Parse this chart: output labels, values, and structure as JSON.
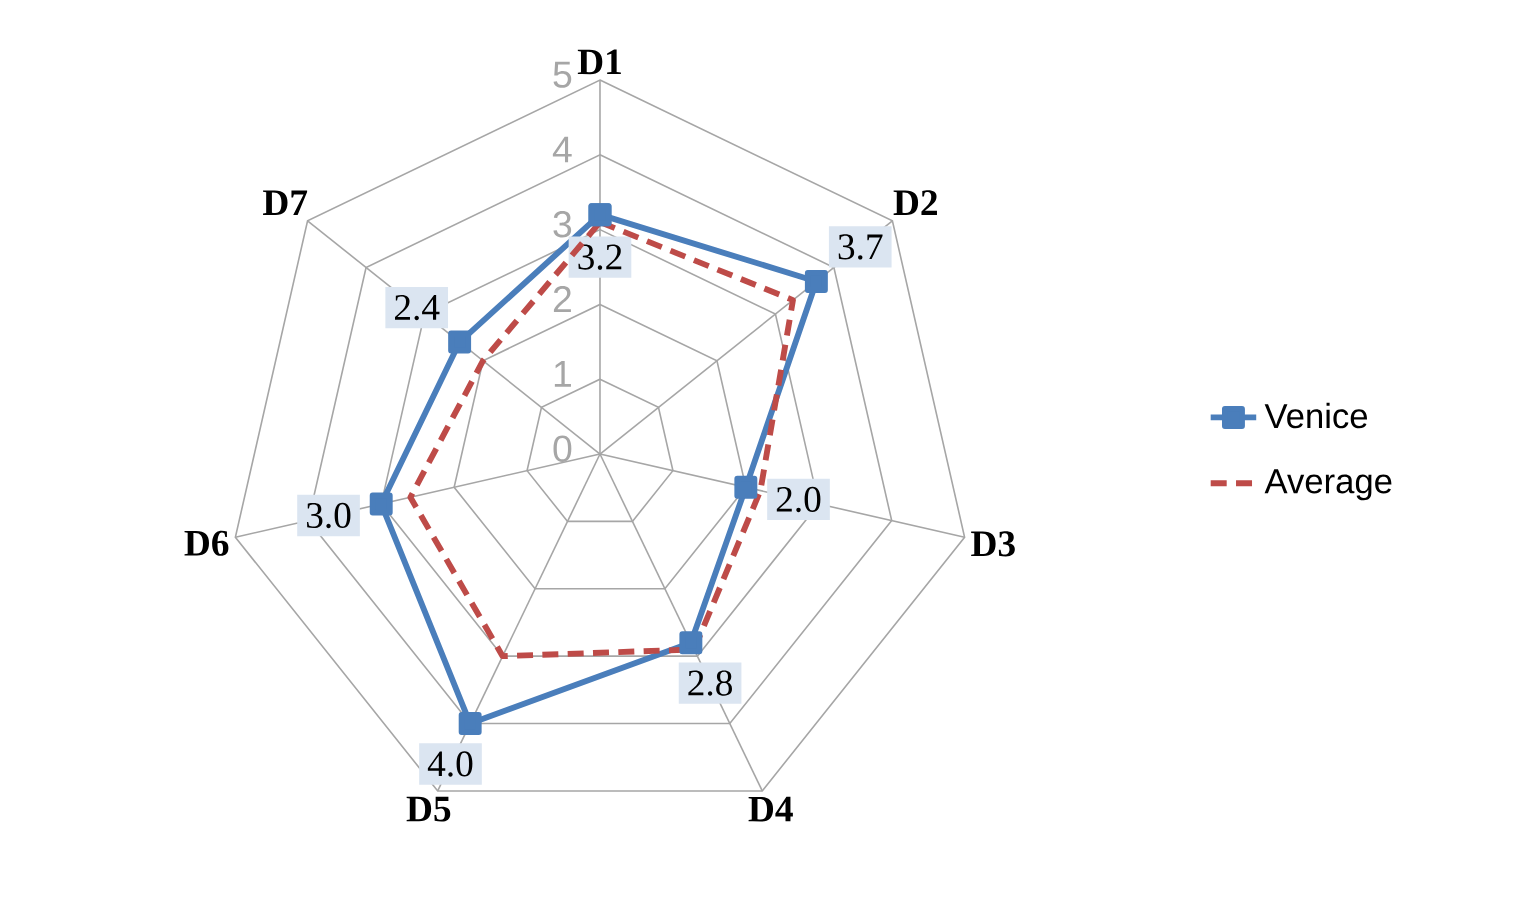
{
  "chart_data": {
    "type": "radar",
    "categories": [
      "D1",
      "D2",
      "D3",
      "D4",
      "D5",
      "D6",
      "D7"
    ],
    "series": [
      {
        "name": "Venice",
        "color": "#4a7ebb",
        "values": [
          3.2,
          3.7,
          2.0,
          2.8,
          4.0,
          3.0,
          2.4
        ],
        "value_labels": [
          "3.2",
          "3.7",
          "2.0",
          "2.8",
          "4.0",
          "3.0",
          "2.4"
        ],
        "marker": "square",
        "line_style": "solid"
      },
      {
        "name": "Average",
        "color": "#be4b48",
        "values": [
          3.1,
          3.3,
          2.2,
          2.9,
          3.0,
          2.6,
          2.0
        ],
        "marker": "none",
        "line_style": "dashed"
      }
    ],
    "ylim": [
      0,
      5
    ],
    "yticks": [
      0,
      1,
      2,
      3,
      4,
      5
    ],
    "grid": true,
    "legend": "right"
  }
}
